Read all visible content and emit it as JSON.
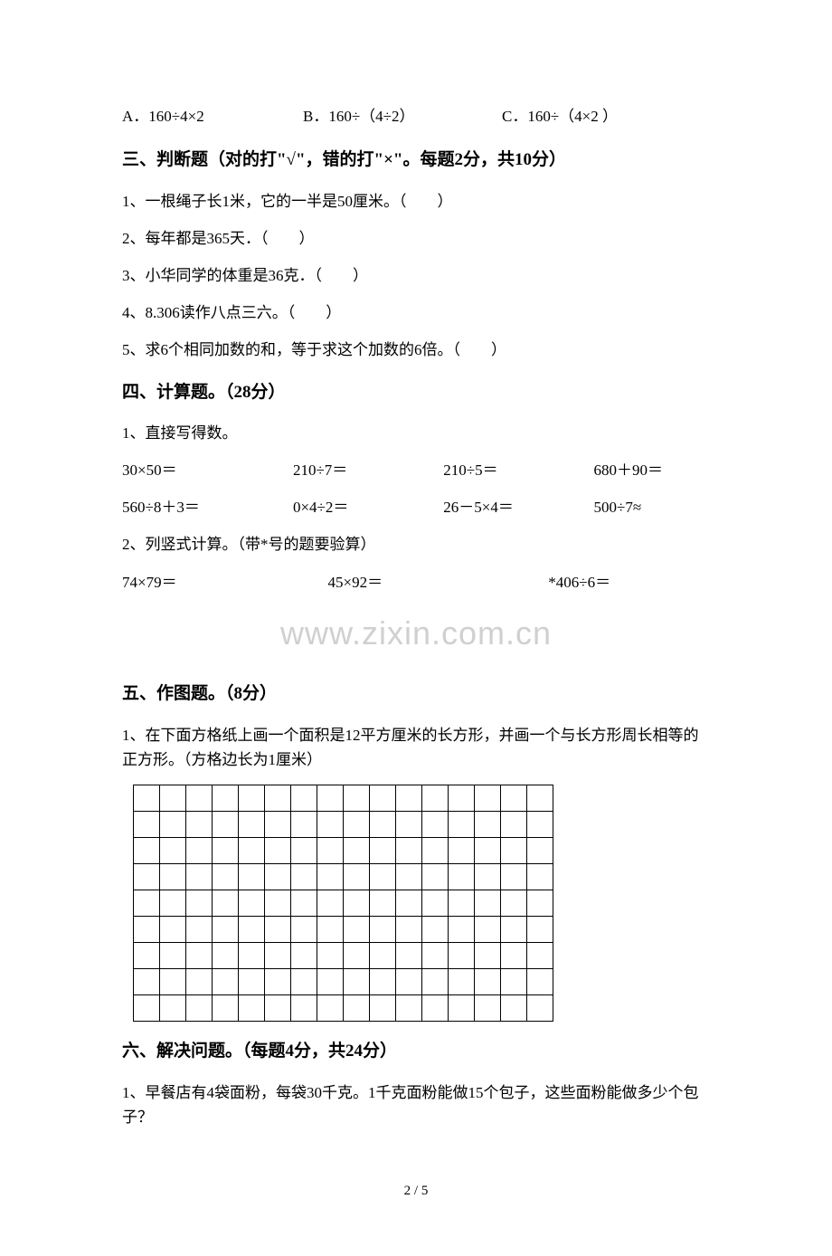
{
  "choices": {
    "a": "A．160÷4×2",
    "b": "B．160÷（4÷2）",
    "c": "C．160÷（4×2 ）"
  },
  "section3": {
    "heading": "三、判断题（对的打\"√\"，错的打\"×\"。每题2分，共10分）",
    "q1": "1、一根绳子长1米，它的一半是50厘米。（　　）",
    "q2": "2、每年都是365天．（　　）",
    "q3": "3、小华同学的体重是36克．（　　）",
    "q4": "4、8.306读作八点三六。（　　）",
    "q5": "5、求6个相同加数的和，等于求这个加数的6倍。（　　）"
  },
  "section4": {
    "heading": "四、计算题。（28分）",
    "q1_label": "1、直接写得数。",
    "row1": {
      "c1": "30×50＝",
      "c2": "210÷7＝",
      "c3": "210÷5＝",
      "c4": "680＋90＝"
    },
    "row2": {
      "c1": "560÷8＋3＝",
      "c2": "0×4÷2＝",
      "c3": "26－5×4＝",
      "c4": "500÷7≈"
    },
    "q2_label": "2、列竖式计算。（带*号的题要验算）",
    "row3": {
      "c1": "74×79＝",
      "c2": "45×92＝",
      "c3": "*406÷6＝"
    }
  },
  "watermark": "www.zixin.com.cn",
  "section5": {
    "heading": "五、作图题。（8分）",
    "q1": "1、在下面方格纸上画一个面积是12平方厘米的长方形，并画一个与长方形周长相等的正方形。（方格边长为1厘米）",
    "grid": {
      "rows": 9,
      "cols": 16
    }
  },
  "section6": {
    "heading": "六、解决问题。（每题4分，共24分）",
    "q1": "1、早餐店有4袋面粉，每袋30千克。1千克面粉能做15个包子，这些面粉能做多少个包子？"
  },
  "page_number": "2 / 5"
}
